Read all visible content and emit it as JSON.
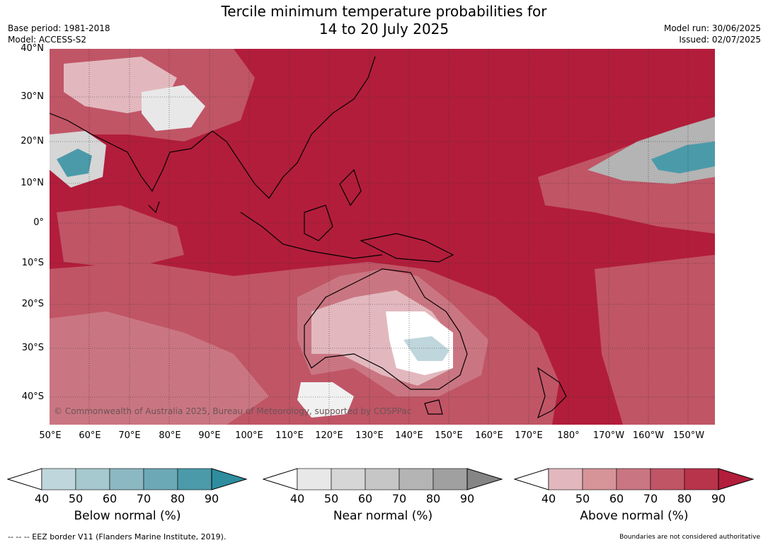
{
  "title_line1": "Tercile minimum temperature probabilities for",
  "title_line2": "14 to 20 July 2025",
  "base_period": "Base period: 1981-2018",
  "model": "Model: ACCESS-S2",
  "model_run": "Model run: 30/06/2025",
  "issued": "Issued: 02/07/2025",
  "copyright": "© Commonwealth of Australia 2025, Bureau of Meteorology, supported by COSPPac",
  "footer_left": "--  --  -- EEZ border V11 (Flanders Marine Institute, 2019).",
  "footer_right": "Boundaries are not considered authoritative",
  "lat_labels": [
    "40°N",
    "30°N",
    "20°N",
    "10°N",
    "0°",
    "10°S",
    "20°S",
    "30°S",
    "40°S"
  ],
  "lon_labels": [
    "50°E",
    "60°E",
    "70°E",
    "80°E",
    "90°E",
    "100°E",
    "110°E",
    "120°E",
    "130°E",
    "140°E",
    "150°E",
    "160°E",
    "170°E",
    "180°",
    "170°W",
    "160°W",
    "150°W"
  ],
  "colorbars": [
    {
      "title": "Below normal (%)",
      "ticks": [
        "40",
        "50",
        "60",
        "70",
        "80",
        "90"
      ],
      "colors": [
        "#bfd6dc",
        "#a6c8cf",
        "#8bb8c2",
        "#6ca9b6",
        "#4b9aaa",
        "#2e8d9f"
      ]
    },
    {
      "title": "Near normal (%)",
      "ticks": [
        "40",
        "50",
        "60",
        "70",
        "80",
        "90"
      ],
      "colors": [
        "#e8e8e8",
        "#d6d6d6",
        "#c6c6c6",
        "#b4b4b4",
        "#a0a0a0",
        "#858585"
      ]
    },
    {
      "title": "Above normal (%)",
      "ticks": [
        "40",
        "50",
        "60",
        "70",
        "80",
        "90"
      ],
      "colors": [
        "#e2b8be",
        "#d69499",
        "#ca7682",
        "#c05566",
        "#b8344b",
        "#b21d3b"
      ]
    }
  ],
  "colors": {
    "ocean_base": "#b21d3b",
    "coast": "#000000",
    "grid": "#333333"
  }
}
